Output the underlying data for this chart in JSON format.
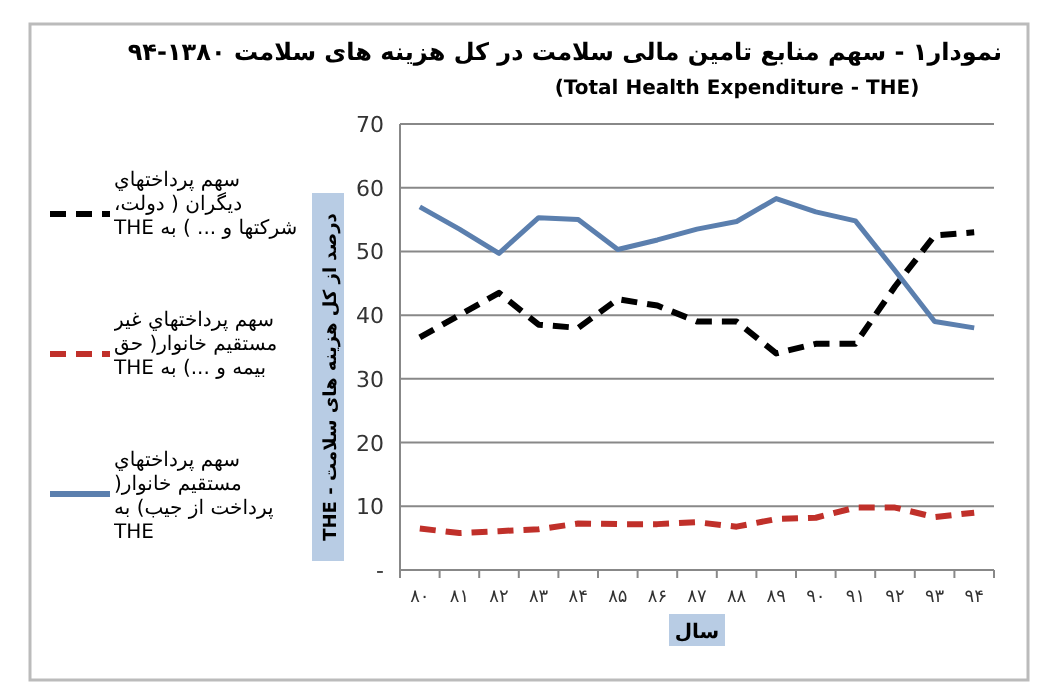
{
  "chart_data": {
    "type": "line",
    "title": "نمودار۱ - سهم منابع تامین مالی سلامت در کل هزینه های سلامت ۱۳۸۰-۹۴",
    "subtitle": "(Total Health Expenditure - THE)",
    "xlabel": "سال",
    "ylabel": "درصد از کل هزینه های سلامت - THE",
    "categories": [
      "۸۰",
      "۸۱",
      "۸۲",
      "۸۳",
      "۸۴",
      "۸۵",
      "۸۶",
      "۸۷",
      "۸۸",
      "۸۹",
      "۹۰",
      "۹۱",
      "۹۲",
      "۹۳",
      "۹۴"
    ],
    "series": [
      {
        "name": "سهم پرداختهاي ديگران ( دولت، شركتها و ... ) به THE",
        "color": "#000000",
        "line_style": "dashed",
        "values": [
          36.5,
          40,
          43.5,
          38.5,
          38,
          42.5,
          41.5,
          39,
          39,
          34,
          35.5,
          35.5,
          44.5,
          52.5,
          53
        ]
      },
      {
        "name": "سهم پرداختهاي غير مستقيم خانوار( حق بيمه و ...) به THE",
        "color": "#c0302a",
        "line_style": "dashed",
        "values": [
          6.5,
          5.8,
          6.1,
          6.4,
          7.3,
          7.2,
          7.2,
          7.5,
          6.8,
          8,
          8.2,
          9.8,
          9.8,
          8.3,
          9
        ]
      },
      {
        "name": "سهم پرداختهاي مستقيم خانوار( پرداخت از جيب) به THE",
        "color": "#5b7fae",
        "line_style": "solid",
        "values": [
          57,
          53.5,
          49.7,
          55.3,
          55,
          50.3,
          51.8,
          53.5,
          54.7,
          58.3,
          56.2,
          54.8,
          47,
          39,
          38
        ]
      }
    ],
    "ylim": [
      0,
      70
    ],
    "yticks": [
      {
        "value": 0,
        "label": "-"
      },
      10,
      20,
      30,
      40,
      50,
      60,
      70
    ],
    "grid": "y",
    "legend": "left",
    "marker": "none"
  }
}
